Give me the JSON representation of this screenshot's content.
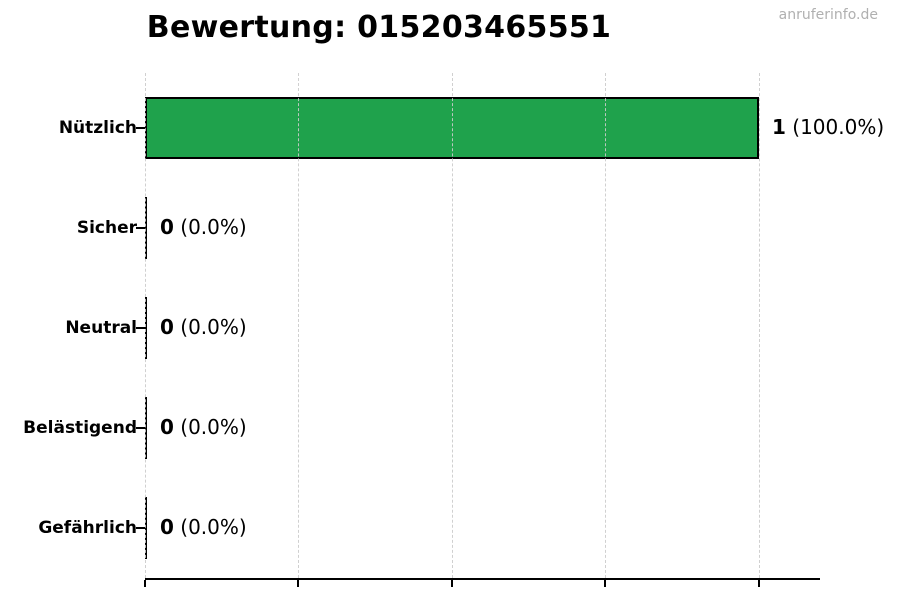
{
  "watermark": "anruferinfo.de",
  "chart_data": {
    "type": "bar",
    "orientation": "horizontal",
    "title": "Bewertung: 015203465551",
    "categories": [
      "Nützlich",
      "Sicher",
      "Neutral",
      "Belästigend",
      "Gefährlich"
    ],
    "values": [
      1,
      0,
      0,
      0,
      0
    ],
    "counts": [
      "1",
      "0",
      "0",
      "0",
      "0"
    ],
    "percents": [
      "(100.0%)",
      "(0.0%)",
      "(0.0%)",
      "(0.0%)",
      "(0.0%)"
    ],
    "value_label_texts": [
      "1 (100.0%)",
      "0 (0.0%)",
      "0 (0.0%)",
      "0 (0.0%)",
      "0 (0.0%)"
    ],
    "xlabel": "",
    "ylabel": "",
    "xlim": [
      0,
      1.1
    ],
    "x_ticks": [
      0,
      0.25,
      0.5,
      0.75,
      1.0
    ],
    "x_tick_labels_visible": false,
    "grid": "vertical-dashed",
    "legend": "none",
    "colors": {
      "bar_fill": "#1fa24c",
      "bar_edge": "#000000",
      "grid": "#cccccc",
      "axis": "#000000",
      "text": "#000000",
      "watermark": "#b0b0b0",
      "background": "#ffffff"
    }
  }
}
